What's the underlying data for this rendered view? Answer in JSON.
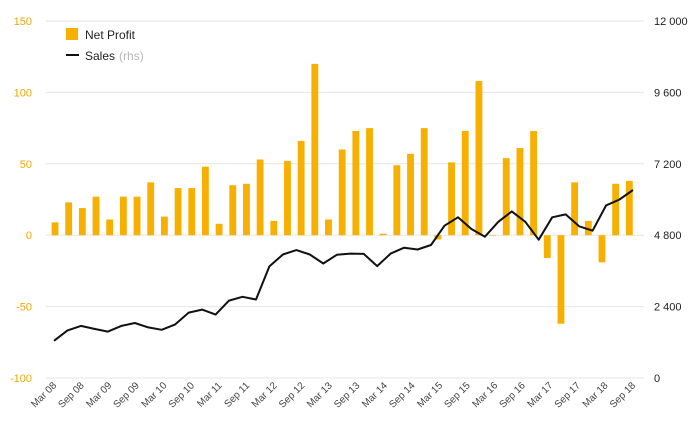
{
  "chart_data": {
    "type": "bar+line",
    "colors": {
      "bar": "#f7b000",
      "line": "#111111",
      "grid": "#e6e6e6",
      "left_axis": "#f0a800"
    },
    "legend": {
      "placement": "top-left",
      "bar_label": "Net Profit",
      "line_label": "Sales",
      "line_suffix": "(rhs)"
    },
    "left_axis": {
      "ticks": [
        "150",
        "100",
        "50",
        "0",
        "-50",
        "-100"
      ],
      "ylim": [
        -100,
        150
      ]
    },
    "right_axis": {
      "ticks": [
        "12 000",
        "9 600",
        "7 200",
        "4 800",
        "2 400",
        "0"
      ],
      "ylim": [
        0,
        12000
      ]
    },
    "x_tick_labels": [
      "Mar 08",
      "Sep 08",
      "Mar 09",
      "Sep 09",
      "Mar 10",
      "Sep 10",
      "Mar 11",
      "Sep 11",
      "Mar 12",
      "Sep 12",
      "Mar 13",
      "Sep 13",
      "Mar 14",
      "Sep 14",
      "Mar 15",
      "Sep 15",
      "Mar 16",
      "Sep 16",
      "Mar 17",
      "Sep 17",
      "Mar 18",
      "Sep 18"
    ],
    "net_profit": [
      9,
      23,
      19,
      27,
      11,
      27,
      27,
      37,
      13,
      33,
      33,
      48,
      8,
      35,
      36,
      53,
      10,
      52,
      66,
      120,
      11,
      60,
      73,
      75,
      1,
      49,
      57,
      75,
      -3,
      51,
      73,
      108,
      0,
      54,
      61,
      73,
      -16,
      -62,
      37,
      10,
      -19,
      36,
      38
    ],
    "sales": [
      1250,
      1600,
      1750,
      1650,
      1560,
      1750,
      1850,
      1700,
      1620,
      1800,
      2200,
      2300,
      2130,
      2600,
      2730,
      2640,
      3750,
      4150,
      4300,
      4150,
      3850,
      4140,
      4180,
      4170,
      3760,
      4180,
      4380,
      4320,
      4470,
      5120,
      5400,
      5010,
      4750,
      5250,
      5600,
      5250,
      4650,
      5400,
      5500,
      5100,
      4950,
      5800,
      6000,
      6320
    ]
  }
}
